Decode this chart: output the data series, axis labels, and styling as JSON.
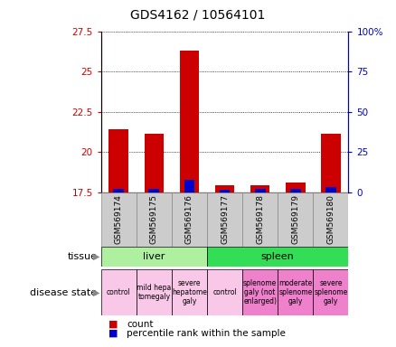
{
  "title": "GDS4162 / 10564101",
  "samples": [
    "GSM569174",
    "GSM569175",
    "GSM569176",
    "GSM569177",
    "GSM569178",
    "GSM569179",
    "GSM569180"
  ],
  "count_values": [
    21.4,
    21.15,
    26.3,
    17.95,
    17.95,
    18.15,
    21.15
  ],
  "percentile_values": [
    2.5,
    2.5,
    8.0,
    2.0,
    2.5,
    2.5,
    3.5
  ],
  "bar_bottom": 17.5,
  "ylim_left": [
    17.5,
    27.5
  ],
  "ylim_right": [
    0,
    100
  ],
  "yticks_left": [
    17.5,
    20.0,
    22.5,
    25.0,
    27.5
  ],
  "ytick_labels_left": [
    "17.5",
    "20",
    "22.5",
    "25",
    "27.5"
  ],
  "yticks_right": [
    0,
    25,
    50,
    75,
    100
  ],
  "ytick_labels_right": [
    "0",
    "25",
    "50",
    "75",
    "100%"
  ],
  "grid_yticks": [
    20.0,
    22.5,
    25.0
  ],
  "tissue_groups": [
    {
      "label": "liver",
      "start": 0,
      "end": 3,
      "color": "#aef0a0"
    },
    {
      "label": "spleen",
      "start": 3,
      "end": 7,
      "color": "#33dd55"
    }
  ],
  "disease_states": [
    {
      "label": "control",
      "start": 0,
      "end": 1,
      "color": "#f9c8e8"
    },
    {
      "label": "mild hepa\ntomegaly",
      "start": 1,
      "end": 2,
      "color": "#f9c8e8"
    },
    {
      "label": "severe\nhepatome\ngaly",
      "start": 2,
      "end": 3,
      "color": "#f9c8e8"
    },
    {
      "label": "control",
      "start": 3,
      "end": 4,
      "color": "#f9c8e8"
    },
    {
      "label": "splenome\ngaly (not\nenlarged)",
      "start": 4,
      "end": 5,
      "color": "#ee80cc"
    },
    {
      "label": "moderate\nsplenome\ngaly",
      "start": 5,
      "end": 6,
      "color": "#ee80cc"
    },
    {
      "label": "severe\nsplenome\ngaly",
      "start": 6,
      "end": 7,
      "color": "#ee80cc"
    }
  ],
  "count_color": "#cc0000",
  "percentile_color": "#0000cc",
  "bar_width": 0.55,
  "left_axis_color": "#cc0000",
  "right_axis_color": "#0000cc",
  "title_fontsize": 10,
  "tick_fontsize": 7.5,
  "sample_fontsize": 6.5,
  "row_label_fontsize": 8,
  "ds_fontsize": 5.5,
  "tissue_fontsize": 8,
  "legend_fontsize": 7.5
}
